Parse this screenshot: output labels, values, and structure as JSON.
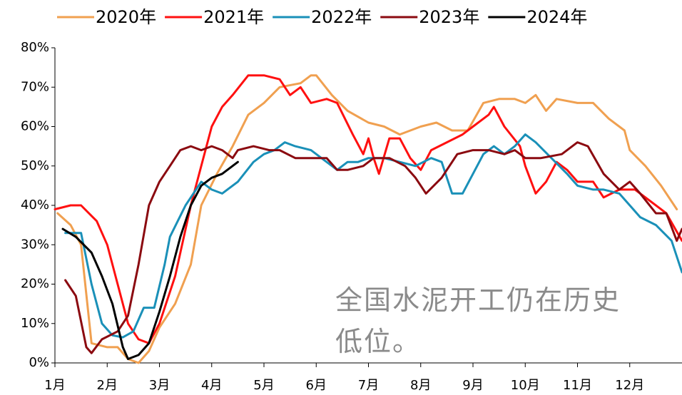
{
  "chart_data": {
    "type": "line",
    "xlim": [
      1,
      13
    ],
    "ylim": [
      0,
      80
    ],
    "xticks": [
      {
        "value": 1,
        "label": "1月"
      },
      {
        "value": 2,
        "label": "2月"
      },
      {
        "value": 3,
        "label": "3月"
      },
      {
        "value": 4,
        "label": "4月"
      },
      {
        "value": 5,
        "label": "5月"
      },
      {
        "value": 6,
        "label": "6月"
      },
      {
        "value": 7,
        "label": "7月"
      },
      {
        "value": 8,
        "label": "8月"
      },
      {
        "value": 9,
        "label": "9月"
      },
      {
        "value": 10,
        "label": "10月"
      },
      {
        "value": 11,
        "label": "11月"
      },
      {
        "value": 12,
        "label": "12月"
      }
    ],
    "yticks": [
      {
        "value": 0,
        "label": "0%"
      },
      {
        "value": 10,
        "label": "10%"
      },
      {
        "value": 20,
        "label": "20%"
      },
      {
        "value": 30,
        "label": "30%"
      },
      {
        "value": 40,
        "label": "40%"
      },
      {
        "value": 50,
        "label": "50%"
      },
      {
        "value": 60,
        "label": "60%"
      },
      {
        "value": 70,
        "label": "70%"
      },
      {
        "value": 80,
        "label": "80%"
      }
    ],
    "annotation": "全国水泥开工仍在历史低位。",
    "legend": "top",
    "series": [
      {
        "name": "2020年",
        "color": "#f0a050",
        "x": [
          1.05,
          1.3,
          1.5,
          1.7,
          2.0,
          2.2,
          2.4,
          2.6,
          2.8,
          3.0,
          3.3,
          3.6,
          3.8,
          4.1,
          4.4,
          4.7,
          5.0,
          5.3,
          5.7,
          5.9,
          6.0,
          6.3,
          6.6,
          7.0,
          7.3,
          7.6,
          8.0,
          8.3,
          8.6,
          8.9,
          9.2,
          9.5,
          9.8,
          10.0,
          10.2,
          10.4,
          10.6,
          11.0,
          11.3,
          11.6,
          11.9,
          12.0,
          12.3,
          12.6,
          12.9
        ],
        "values": [
          38,
          35,
          30,
          5,
          4,
          4,
          1,
          0,
          3,
          9,
          15,
          25,
          40,
          48,
          55,
          63,
          66,
          70,
          71,
          73,
          73,
          68,
          64,
          61,
          60,
          58,
          60,
          61,
          59,
          59,
          66,
          67,
          67,
          66,
          68,
          64,
          67,
          66,
          66,
          62,
          59,
          54,
          50,
          45,
          39
        ]
      },
      {
        "name": "2021年",
        "color": "#ff1010",
        "x": [
          1.0,
          1.3,
          1.5,
          1.8,
          2.0,
          2.2,
          2.4,
          2.6,
          2.8,
          3.0,
          3.3,
          3.6,
          3.8,
          4.0,
          4.2,
          4.4,
          4.7,
          5.0,
          5.3,
          5.5,
          5.7,
          5.9,
          6.2,
          6.4,
          6.7,
          6.9,
          7.0,
          7.1,
          7.2,
          7.4,
          7.6,
          7.8,
          8.0,
          8.2,
          8.5,
          8.8,
          9.0,
          9.3,
          9.4,
          9.6,
          9.9,
          10.0,
          10.2,
          10.4,
          10.6,
          10.8,
          11.0,
          11.3,
          11.5,
          11.8,
          12.1,
          12.4,
          12.7,
          13.0
        ],
        "values": [
          39,
          40,
          40,
          36,
          30,
          20,
          10,
          6,
          5,
          10,
          22,
          40,
          50,
          60,
          65,
          68,
          73,
          73,
          72,
          68,
          70,
          66,
          67,
          66,
          58,
          53,
          57,
          52,
          48,
          57,
          57,
          52,
          49,
          54,
          56,
          58,
          60,
          63,
          65,
          60,
          55,
          50,
          43,
          46,
          51,
          49,
          46,
          46,
          42,
          44,
          44,
          41,
          38,
          31
        ]
      },
      {
        "name": "2022年",
        "color": "#1a90b8",
        "x": [
          1.2,
          1.5,
          1.7,
          1.9,
          2.1,
          2.3,
          2.5,
          2.7,
          2.9,
          3.1,
          3.2,
          3.5,
          3.8,
          4.0,
          4.2,
          4.5,
          4.8,
          5.0,
          5.2,
          5.4,
          5.6,
          5.9,
          6.1,
          6.4,
          6.6,
          6.8,
          7.0,
          7.3,
          7.6,
          7.9,
          8.2,
          8.4,
          8.6,
          8.8,
          9.0,
          9.2,
          9.4,
          9.6,
          9.8,
          10.0,
          10.2,
          10.5,
          10.8,
          11.0,
          11.3,
          11.5,
          11.8,
          12.0,
          12.2,
          12.5,
          12.8,
          13.0
        ],
        "values": [
          33,
          33,
          20,
          10,
          7,
          6.5,
          8,
          14,
          14,
          25,
          32,
          40,
          46,
          44,
          43,
          46,
          51,
          53,
          54,
          56,
          55,
          54,
          52,
          49,
          51,
          51,
          52,
          52,
          51,
          50,
          52,
          51,
          43,
          43,
          48,
          53,
          55,
          53,
          55,
          58,
          56,
          52,
          48,
          45,
          44,
          44,
          43,
          40,
          37,
          35,
          31,
          23
        ]
      },
      {
        "name": "2023年",
        "color": "#8b0a10",
        "x": [
          1.2,
          1.4,
          1.6,
          1.7,
          1.9,
          2.2,
          2.4,
          2.6,
          2.8,
          3.0,
          3.2,
          3.4,
          3.6,
          3.8,
          4.0,
          4.2,
          4.4,
          4.5,
          4.8,
          5.1,
          5.3,
          5.6,
          5.9,
          6.2,
          6.4,
          6.6,
          6.9,
          7.1,
          7.4,
          7.7,
          7.9,
          8.1,
          8.4,
          8.7,
          9.0,
          9.3,
          9.6,
          9.8,
          10.0,
          10.3,
          10.7,
          11.0,
          11.2,
          11.5,
          11.8,
          12.0,
          12.2,
          12.5,
          12.7,
          12.9,
          13.0
        ],
        "values": [
          21,
          17,
          4,
          2.5,
          6,
          8,
          12,
          25,
          40,
          46,
          50,
          54,
          55,
          54,
          55,
          54,
          52,
          54,
          55,
          54,
          54,
          52,
          52,
          52,
          49,
          49,
          50,
          52,
          52,
          50,
          47,
          43,
          47,
          53,
          54,
          54,
          53,
          54,
          52,
          52,
          53,
          56,
          55,
          48,
          44,
          46,
          43,
          38,
          38,
          31,
          34
        ]
      },
      {
        "name": "2024年",
        "color": "#000000",
        "x": [
          1.15,
          1.4,
          1.7,
          1.9,
          2.1,
          2.3,
          2.4,
          2.6,
          2.8,
          3.0,
          3.2,
          3.4,
          3.6,
          3.8,
          4.0,
          4.2,
          4.5
        ],
        "values": [
          34,
          32,
          28,
          22,
          15,
          4,
          1,
          2,
          5,
          13,
          22,
          32,
          40,
          45,
          47,
          48,
          51
        ]
      }
    ]
  }
}
